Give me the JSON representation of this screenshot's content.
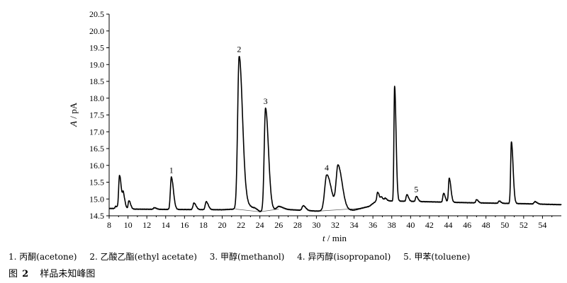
{
  "chart_data": {
    "type": "line",
    "xlabel_var": "t",
    "xlabel_unit": "/ min",
    "ylabel_var": "A",
    "ylabel_unit": "/ pA",
    "xlim": [
      8,
      56
    ],
    "ylim": [
      14.5,
      20.5
    ],
    "xticks": [
      8,
      10,
      12,
      14,
      16,
      18,
      20,
      22,
      24,
      26,
      28,
      30,
      32,
      34,
      36,
      38,
      40,
      42,
      44,
      46,
      48,
      50,
      52,
      54
    ],
    "yticks": [
      "14.5",
      "15.0",
      "15.5",
      "16.0",
      "16.5",
      "17.0",
      "17.5",
      "18.0",
      "18.5",
      "19.0",
      "19.5",
      "20.0",
      "20.5"
    ],
    "grid": false,
    "baseline_points": [
      [
        8.0,
        14.72
      ],
      [
        10,
        14.7
      ],
      [
        14,
        14.69
      ],
      [
        20,
        14.68
      ],
      [
        21.4,
        14.7
      ],
      [
        22.6,
        14.85
      ],
      [
        24.0,
        14.62
      ],
      [
        26,
        14.7
      ],
      [
        30,
        14.64
      ],
      [
        34,
        14.67
      ],
      [
        35.6,
        14.78
      ],
      [
        36.4,
        14.95
      ],
      [
        40,
        14.93
      ],
      [
        46,
        14.89
      ],
      [
        52,
        14.86
      ],
      [
        56,
        14.83
      ]
    ],
    "peaks": [
      {
        "t": 8.7,
        "height": 14.78,
        "width": 0.08
      },
      {
        "t": 9.1,
        "height": 15.7,
        "width": 0.09
      },
      {
        "t": 9.5,
        "height": 15.1,
        "width": 0.08
      },
      {
        "t": 10.1,
        "height": 14.95,
        "width": 0.08
      },
      {
        "t": 12.8,
        "height": 14.74,
        "width": 0.1
      },
      {
        "t": 14.6,
        "height": 15.65,
        "width": 0.1,
        "label": "1"
      },
      {
        "t": 17.0,
        "height": 14.88,
        "width": 0.1
      },
      {
        "t": 18.3,
        "height": 14.92,
        "width": 0.1
      },
      {
        "t": 21.8,
        "height": 19.25,
        "width": 0.16,
        "label": "2"
      },
      {
        "t": 23.5,
        "height": 14.73,
        "width": 0.15
      },
      {
        "t": 24.6,
        "height": 17.7,
        "width": 0.14,
        "label": "3"
      },
      {
        "t": 26.0,
        "height": 14.78,
        "width": 0.2
      },
      {
        "t": 28.6,
        "height": 14.8,
        "width": 0.12
      },
      {
        "t": 31.1,
        "height": 15.72,
        "width": 0.22,
        "label": "4"
      },
      {
        "t": 32.3,
        "height": 15.97,
        "width": 0.2
      },
      {
        "t": 36.5,
        "height": 15.2,
        "width": 0.08
      },
      {
        "t": 36.9,
        "height": 15.05,
        "width": 0.08
      },
      {
        "t": 37.3,
        "height": 15.02,
        "width": 0.08
      },
      {
        "t": 38.3,
        "height": 18.35,
        "width": 0.07
      },
      {
        "t": 39.6,
        "height": 15.13,
        "width": 0.08
      },
      {
        "t": 40.6,
        "height": 15.08,
        "width": 0.08,
        "label": "5"
      },
      {
        "t": 43.5,
        "height": 15.17,
        "width": 0.08
      },
      {
        "t": 44.1,
        "height": 15.62,
        "width": 0.08
      },
      {
        "t": 47.0,
        "height": 14.98,
        "width": 0.08
      },
      {
        "t": 49.4,
        "height": 14.94,
        "width": 0.08
      },
      {
        "t": 50.7,
        "height": 16.7,
        "width": 0.08
      },
      {
        "t": 53.2,
        "height": 14.92,
        "width": 0.1
      }
    ]
  },
  "legend": [
    "1. 丙酮(acetone)",
    "2. 乙酸乙酯(ethyl acetate)",
    "3. 甲醇(methanol)",
    "4. 异丙醇(isopropanol)",
    "5. 甲苯(toluene)"
  ],
  "caption": {
    "prefix": "图",
    "number": "2",
    "title": "样品未知峰图"
  }
}
